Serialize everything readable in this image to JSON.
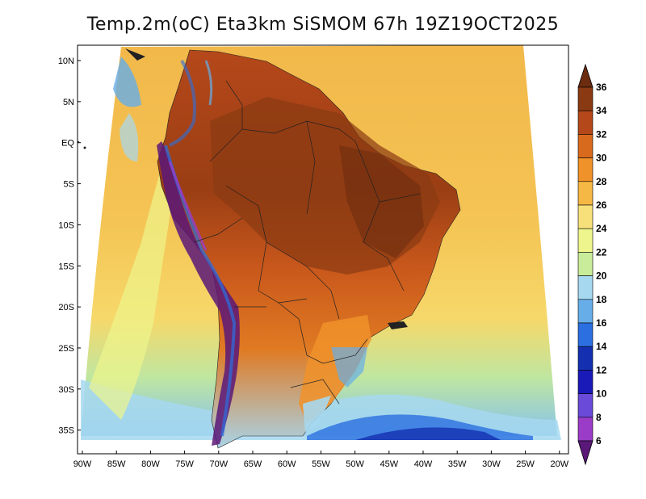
{
  "title": "Temp.2m(oC) Eta3km SiSMOM 67h 19Z19OCT2025",
  "map": {
    "lat_labels": [
      "10N",
      "5N",
      "EQ",
      "5S",
      "10S",
      "15S",
      "20S",
      "25S",
      "30S",
      "35S"
    ],
    "lon_labels": [
      "90W",
      "85W",
      "80W",
      "75W",
      "70W",
      "65W",
      "60W",
      "55W",
      "50W",
      "45W",
      "40W",
      "35W",
      "30W",
      "25W",
      "20W"
    ],
    "lat_values": [
      10,
      5,
      0,
      -5,
      -10,
      -15,
      -20,
      -25,
      -30,
      -35
    ],
    "lon_values": [
      -90,
      -85,
      -80,
      -75,
      -70,
      -65,
      -60,
      -55,
      -50,
      -45,
      -40,
      -35,
      -30,
      -25,
      -20
    ]
  },
  "colorbar": {
    "labels": [
      "36",
      "34",
      "32",
      "30",
      "28",
      "26",
      "24",
      "22",
      "20",
      "18",
      "16",
      "14",
      "12",
      "10",
      "8",
      "6"
    ],
    "colors": [
      "#6b2c0f",
      "#8a3a12",
      "#b5481a",
      "#d86a1e",
      "#f0922a",
      "#f6b844",
      "#f7e07a",
      "#eef58c",
      "#c8ec9a",
      "#a6d8f0",
      "#67aee8",
      "#2b6fe0",
      "#1430b0",
      "#1a1ab8",
      "#6a4ad8",
      "#9b3cc8",
      "#5a1878"
    ]
  }
}
